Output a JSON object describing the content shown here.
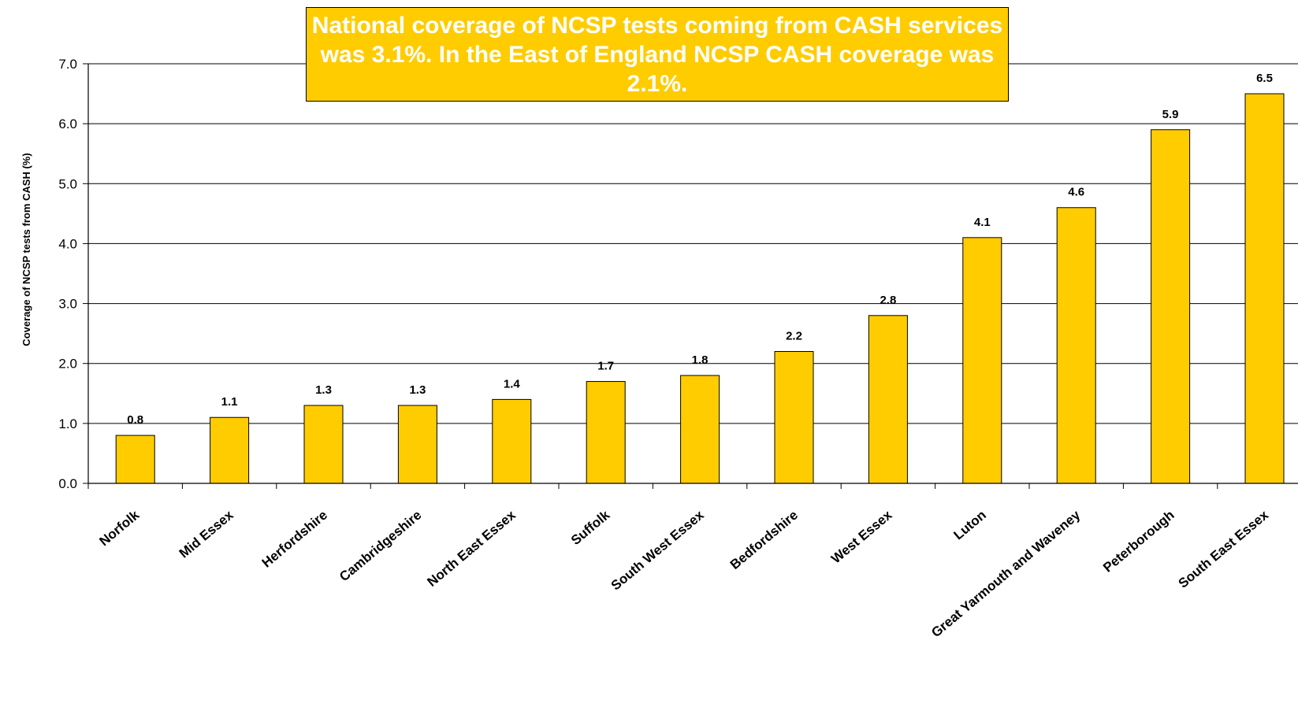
{
  "chart_data": {
    "type": "bar",
    "title": "",
    "xlabel": "",
    "ylabel": "Coverage of NCSP tests from CASH (%)",
    "ylim": [
      0,
      7
    ],
    "ytick_labels": [
      "0.0",
      "1.0",
      "2.0",
      "3.0",
      "4.0",
      "5.0",
      "6.0",
      "7.0"
    ],
    "grid": "horizontal",
    "bar_color": "#FFCC00",
    "categories": [
      "Norfolk",
      "Mid Essex",
      "Herfordshire",
      "Cambridgeshire",
      "North East Essex",
      "Suffolk",
      "South West Essex",
      "Bedfordshire",
      "West Essex",
      "Luton",
      "Great Yarmouth and Waveney",
      "Peterborough",
      "South East Essex"
    ],
    "values": [
      0.8,
      1.1,
      1.3,
      1.3,
      1.4,
      1.7,
      1.8,
      2.2,
      2.8,
      4.1,
      4.6,
      5.9,
      6.5
    ],
    "value_labels": [
      "0.8",
      "1.1",
      "1.3",
      "1.3",
      "1.4",
      "1.7",
      "1.8",
      "2.2",
      "2.8",
      "4.1",
      "4.6",
      "5.9",
      "6.5"
    ],
    "annotation": "National coverage of  NCSP tests coming from CASH services was 3.1%. In the East of England NCSP CASH coverage was 2.1%.",
    "annotation_color": "#FFCC00"
  }
}
